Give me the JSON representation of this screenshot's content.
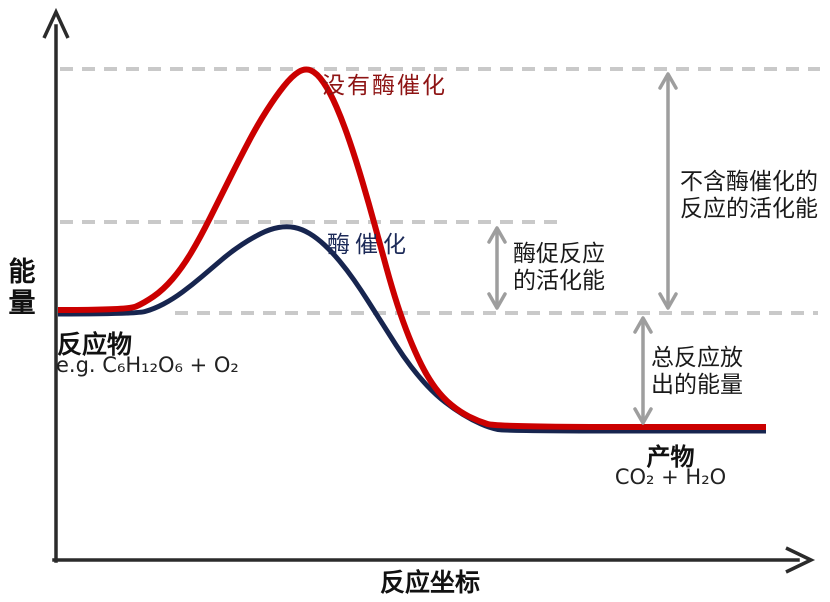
{
  "colors": {
    "curve_uncatalyzed": "#cb0000",
    "curve_catalyzed": "#17254f",
    "label_uncatalyzed": "#8e1414",
    "label_catalyzed": "#1c2a58",
    "dashed_line": "#c9c9c9",
    "measure_arrow": "#9e9e9e",
    "axis": "#2b2b2b"
  },
  "axes": {
    "y_label": "能量",
    "x_label": "反应坐标"
  },
  "curve_labels": {
    "uncatalyzed": "没有酶催化",
    "catalyzed": "酶催化"
  },
  "reactants": {
    "title": "反应物",
    "formula": "e.g. C₆H₁₂O₆ + O₂"
  },
  "products": {
    "title": "产物",
    "formula": "CO₂ + H₂O"
  },
  "annotations": {
    "activation_uncatalyzed": "不含酶催化的反应的活化能",
    "activation_catalyzed": "酶促反应的活化能",
    "energy_released": "总反应放出的能量"
  },
  "chart_data": {
    "type": "line",
    "title": "",
    "xlabel": "反应坐标",
    "ylabel": "能量",
    "x_axis_numeric": false,
    "grid": false,
    "legend_position": "labels-on-curves",
    "dashed_reference_levels": [
      "uncatalyzed_peak",
      "catalyzed_peak",
      "reactant_level"
    ],
    "levels_relative_energy": {
      "reactant_energy": 51,
      "product_energy": 27,
      "uncatalyzed_peak_energy": 100,
      "catalyzed_peak_energy": 68
    },
    "series": [
      {
        "name": "没有酶催化",
        "color": "#cb0000",
        "x": [
          0,
          10,
          18,
          23,
          28,
          35,
          40,
          46,
          50,
          57,
          62,
          100
        ],
        "y": [
          51,
          51,
          59,
          74,
          89,
          100,
          89,
          63,
          42,
          30,
          27,
          27
        ],
        "px": [
          [
            58,
            310
          ],
          [
            128,
            310
          ],
          [
            144,
            303
          ],
          [
            163,
            290
          ],
          [
            182,
            268
          ],
          [
            200,
            238
          ],
          [
            220,
            198
          ],
          [
            240,
            158
          ],
          [
            258,
            124
          ],
          [
            276,
            96
          ],
          [
            292,
            76
          ],
          [
            305,
            68
          ],
          [
            317,
            73
          ],
          [
            330,
            92
          ],
          [
            343,
            122
          ],
          [
            356,
            160
          ],
          [
            369,
            204
          ],
          [
            381,
            248
          ],
          [
            392,
            288
          ],
          [
            403,
            322
          ],
          [
            415,
            352
          ],
          [
            428,
            378
          ],
          [
            443,
            398
          ],
          [
            460,
            412
          ],
          [
            478,
            421
          ],
          [
            497,
            427
          ],
          [
            766,
            427
          ]
        ]
      },
      {
        "name": "酶催化",
        "color": "#17254f",
        "x": [
          0,
          11,
          19,
          25,
          32,
          39,
          45,
          51,
          56,
          63,
          100
        ],
        "y": [
          50,
          50,
          56,
          63,
          68,
          63,
          50,
          37,
          31,
          26,
          26
        ],
        "px": [
          [
            58,
            314
          ],
          [
            136,
            314
          ],
          [
            154,
            309
          ],
          [
            173,
            299
          ],
          [
            192,
            285
          ],
          [
            212,
            268
          ],
          [
            232,
            251
          ],
          [
            252,
            238
          ],
          [
            270,
            229
          ],
          [
            287,
            226
          ],
          [
            302,
            229
          ],
          [
            317,
            238
          ],
          [
            332,
            252
          ],
          [
            347,
            270
          ],
          [
            361,
            290
          ],
          [
            375,
            312
          ],
          [
            389,
            334
          ],
          [
            403,
            356
          ],
          [
            419,
            377
          ],
          [
            436,
            395
          ],
          [
            454,
            409
          ],
          [
            472,
            420
          ],
          [
            490,
            428
          ],
          [
            506,
            431
          ],
          [
            766,
            431
          ]
        ]
      }
    ],
    "measurement_arrows": [
      {
        "label": "不含酶催化的反应的活化能",
        "from_level": "reactant_energy",
        "to_level": "uncatalyzed_peak_energy"
      },
      {
        "label": "酶促反应的活化能",
        "from_level": "reactant_energy",
        "to_level": "catalyzed_peak_energy"
      },
      {
        "label": "总反应放出的能量",
        "from_level": "product_energy",
        "to_level": "reactant_energy"
      }
    ],
    "point_annotations": [
      {
        "text": "反应物",
        "sub_text": "e.g. C₆H₁₂O₆ + O₂",
        "at": "reactant plateau"
      },
      {
        "text": "产物",
        "sub_text": "CO₂ + H₂O",
        "at": "product plateau"
      }
    ]
  }
}
